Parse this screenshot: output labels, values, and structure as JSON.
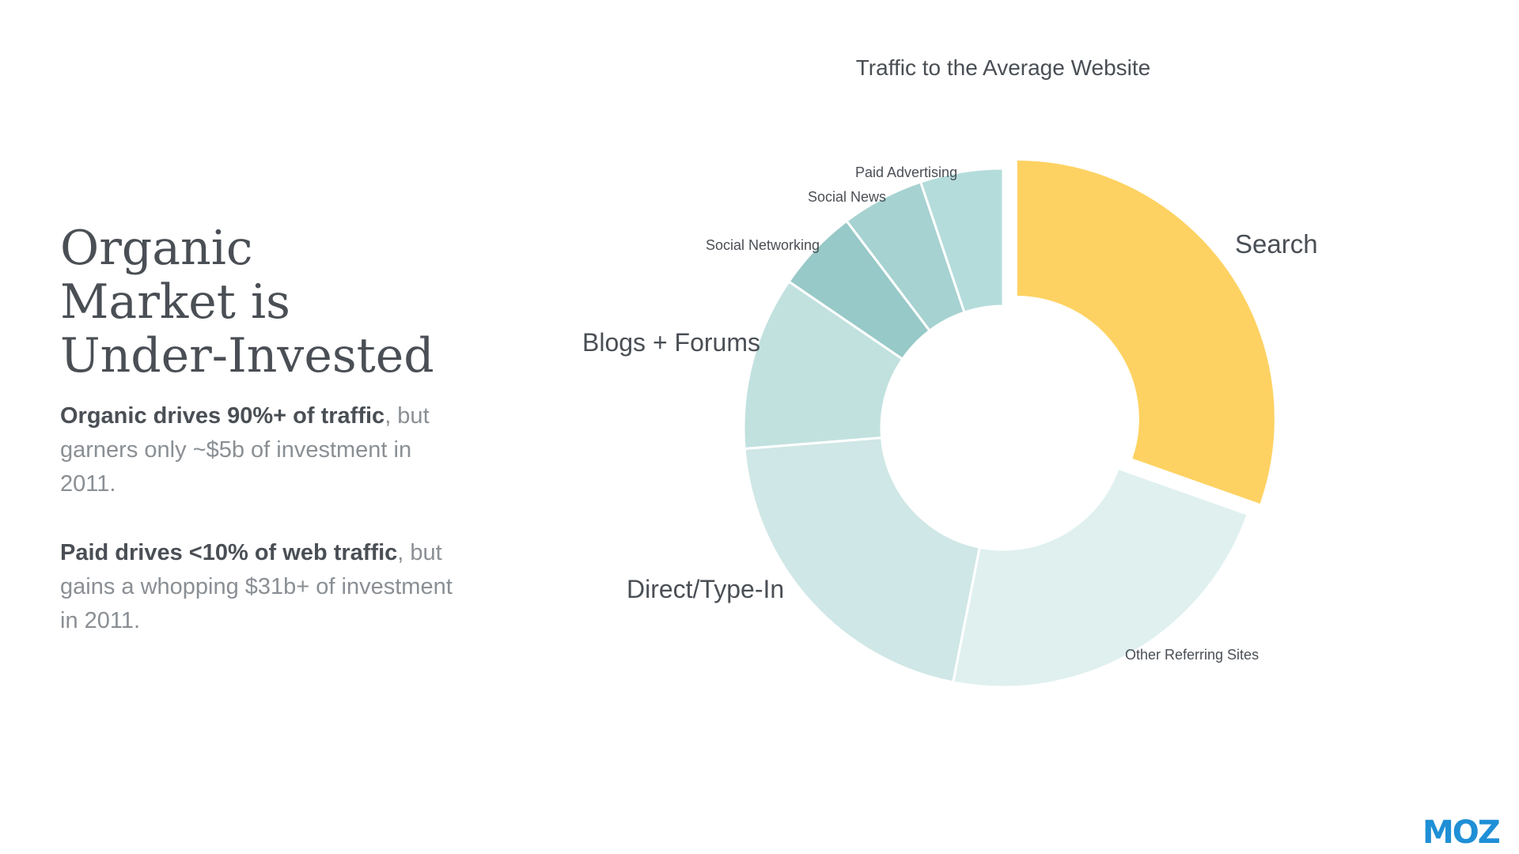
{
  "slide": {
    "headline": [
      "Organic",
      "Market is",
      "Under-Invested"
    ],
    "paragraph_1": {
      "bold": "Organic drives 90%+ of traffic",
      "punct": ",",
      "rest": " but garners only ~$5b of investment in 2011."
    },
    "paragraph_2": {
      "bold": "Paid drives <10% of web traffic",
      "punct": ",",
      "rest": " but gains a whopping $31b+ of investment in 2011."
    },
    "logo_text": "MOZ"
  },
  "chart_data": {
    "type": "pie",
    "donut": true,
    "title": "Traffic to the Average Website",
    "series": [
      {
        "categories": [
          "Search",
          "Other Referring Sites",
          "Direct/Type-In",
          "Blogs + Forums",
          "Social Networking",
          "Social News",
          "Paid Advertising"
        ],
        "values": [
          29.5,
          22,
          20,
          10.5,
          5,
          5,
          5
        ]
      }
    ],
    "colors": [
      "#fed262",
      "#dff0ef",
      "#cfe7e6",
      "#c1e1df",
      "#97c9c8",
      "#a6d2d1",
      "#b4dcdb"
    ],
    "legend": "none"
  }
}
